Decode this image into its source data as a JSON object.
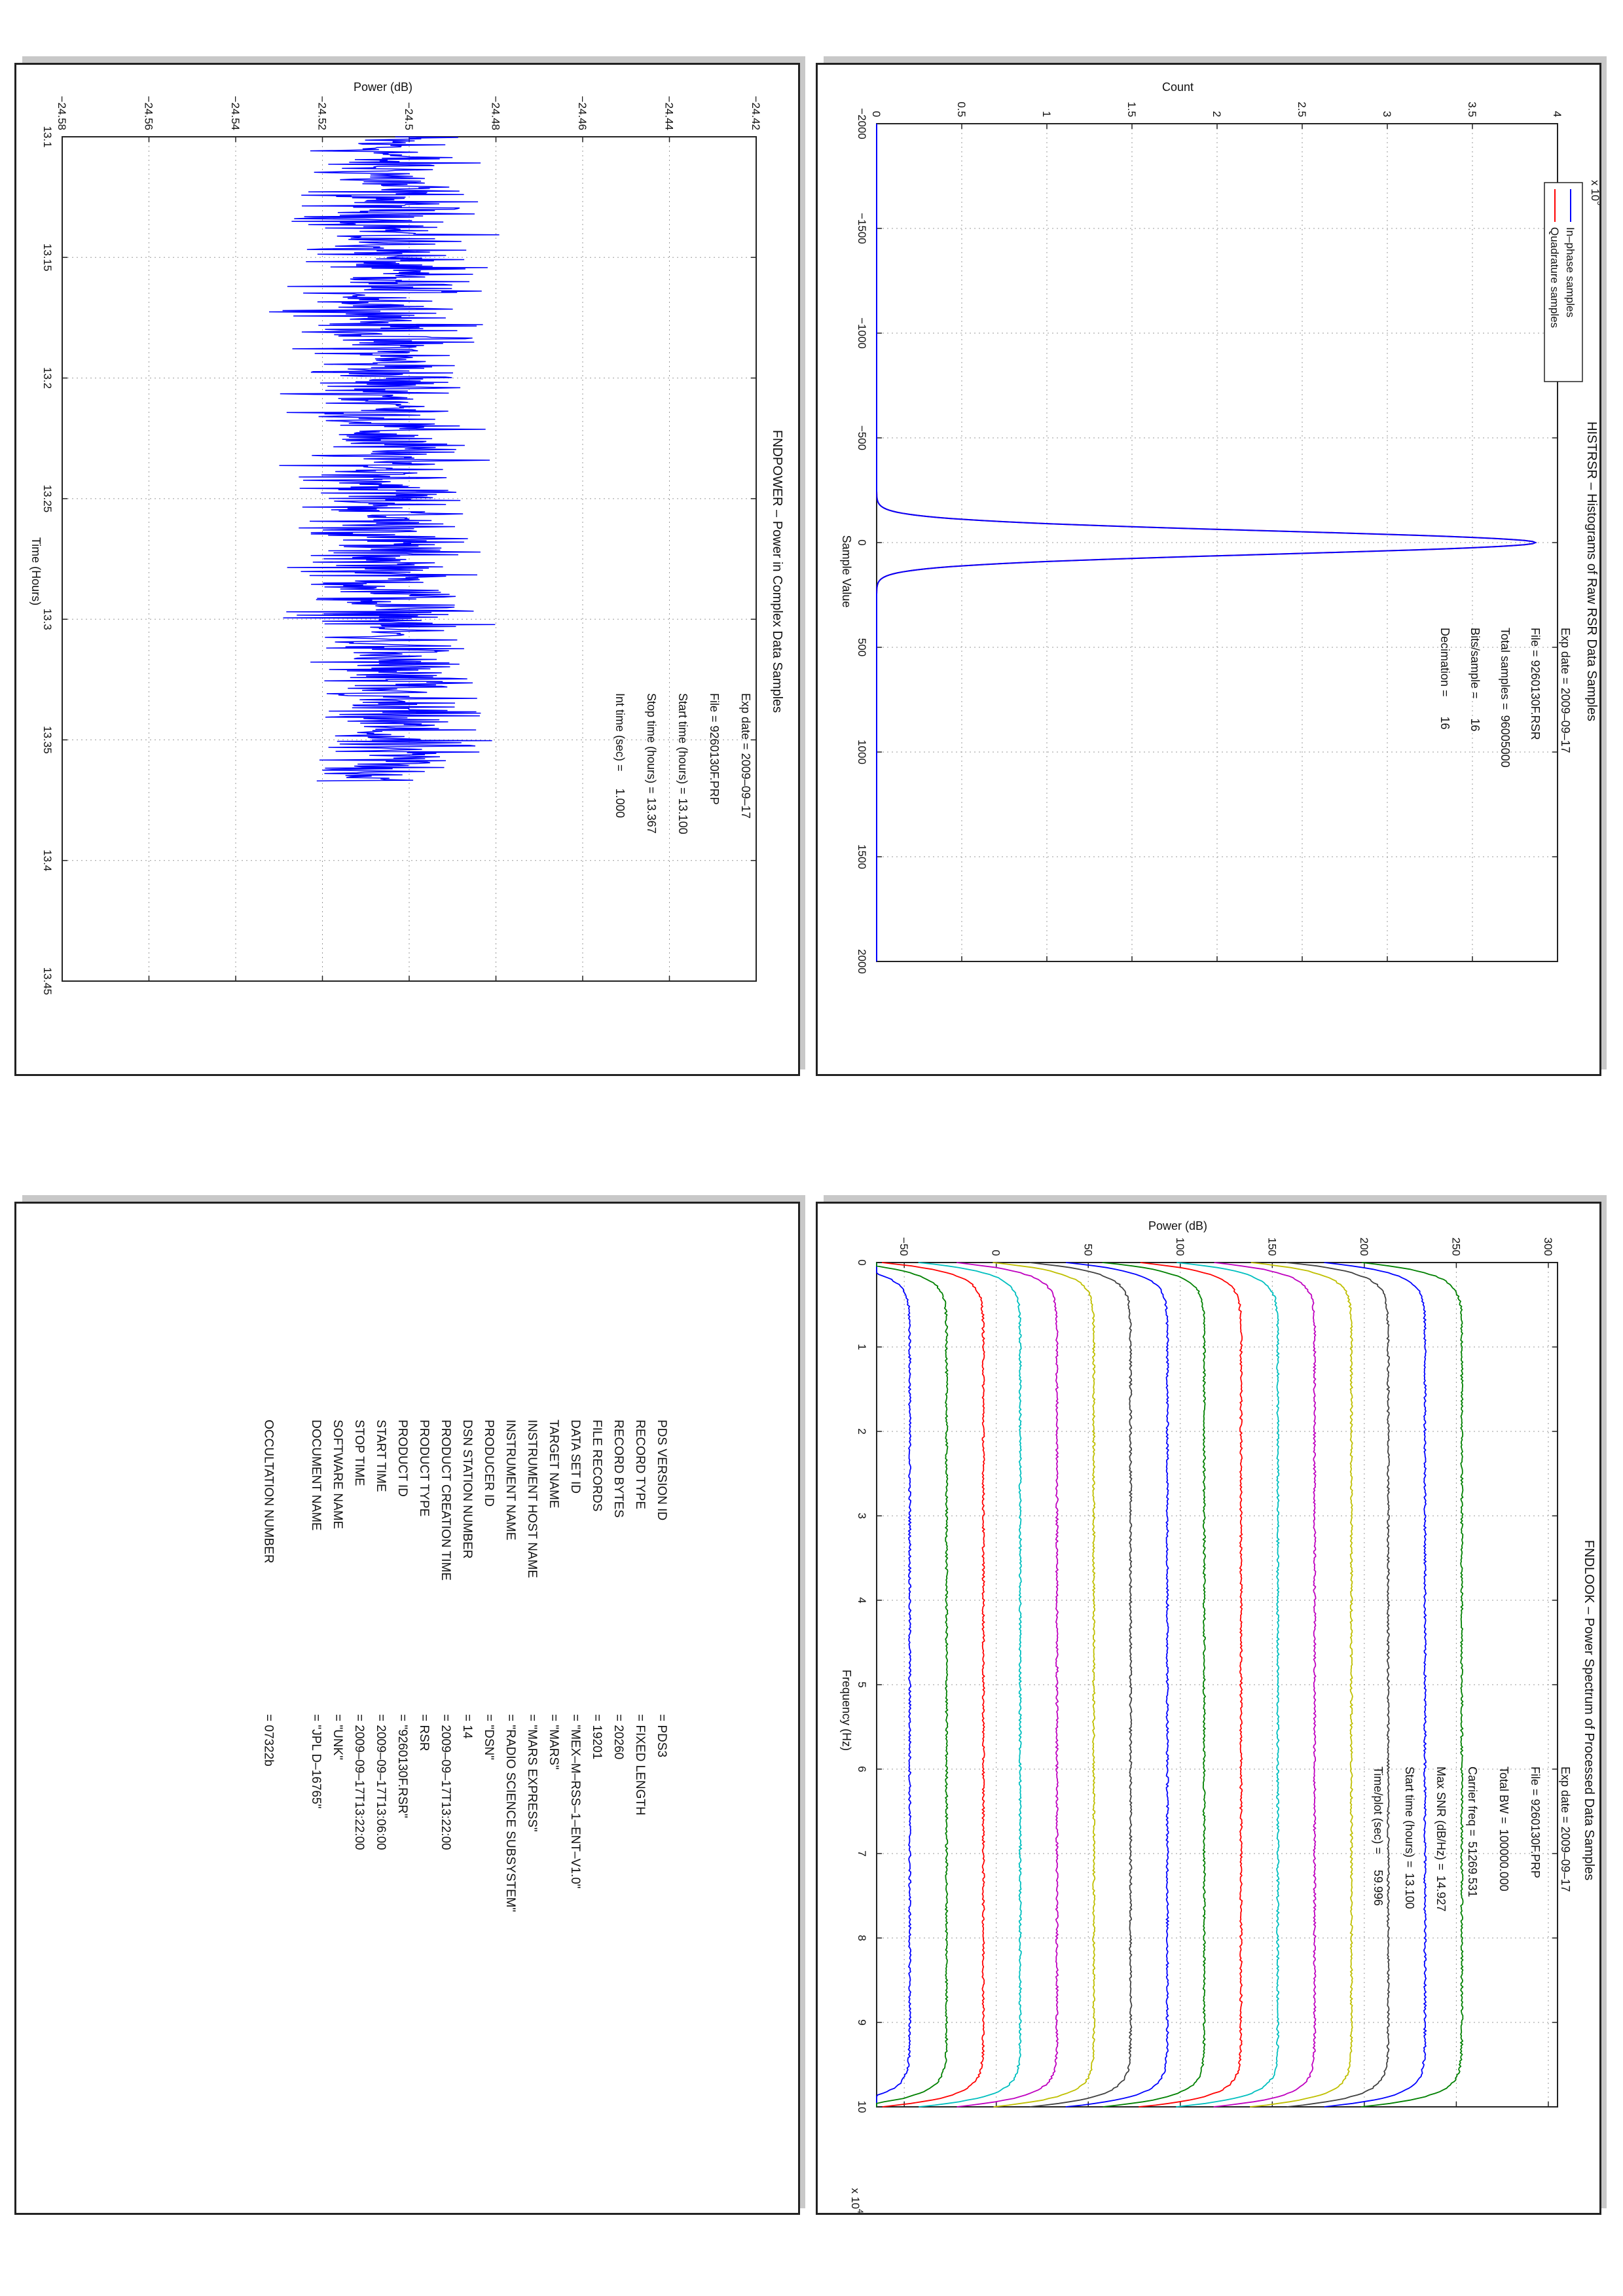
{
  "panels": {
    "histrsr": {
      "title": "HISTRSR – Histograms of Raw RSR Data Samples",
      "info": [
        {
          "label": "Exp date = 2009–09–17",
          "value": ""
        },
        {
          "label": "File = 9260130F.RSR",
          "value": ""
        },
        {
          "label": "Total samples =",
          "value": "96005000"
        },
        {
          "label": "Bits/sample   =",
          "value": "16"
        },
        {
          "label": "Decimation    =",
          "value": "16"
        }
      ],
      "legend": [
        {
          "name": "In–phase samples",
          "color": "#0000ff"
        },
        {
          "name": "Quadrature samples",
          "color": "#ff0000"
        }
      ],
      "chart_data": {
        "type": "line",
        "title": "HISTRSR – Histograms of Raw RSR Data Samples",
        "xlabel": "Sample Value",
        "ylabel": "Count",
        "y_multiplier_label": "x 10",
        "y_multiplier_exp": "5",
        "xlim": [
          -2000,
          2000
        ],
        "ylim": [
          0,
          4
        ],
        "xticks": [
          "−2000",
          "−1500",
          "−1000",
          "−500",
          "0",
          "500",
          "1000",
          "1500",
          "2000"
        ],
        "yticks": [
          "0",
          "0.5",
          "1",
          "1.5",
          "2",
          "2.5",
          "3",
          "3.5",
          "4"
        ],
        "grid": true,
        "legend_position": "top-left",
        "series": [
          {
            "name": "In–phase samples",
            "color": "#0000ff",
            "peak_x": 0,
            "peak_y": 3.87,
            "sigma": 55
          },
          {
            "name": "Quadrature samples",
            "color": "#ff0000",
            "peak_x": 0,
            "peak_y": 3.87,
            "sigma": 55
          }
        ]
      }
    },
    "fndpower": {
      "title": "FNDPOWER – Power in Complex Data Samples",
      "info": [
        {
          "label": "Exp date = 2009–09–17",
          "value": ""
        },
        {
          "label": "File = 9260130F.PRP",
          "value": ""
        },
        {
          "label": "Start time (hours) =",
          "value": "13.100"
        },
        {
          "label": "Stop time (hours) =",
          "value": "13.367"
        },
        {
          "label": "Int time (sec) =",
          "value": "1.000"
        }
      ],
      "chart_data": {
        "type": "line",
        "title": "FNDPOWER – Power in Complex Data Samples",
        "xlabel": "Time (Hours)",
        "ylabel": "Power (dB)",
        "xlim": [
          13.1,
          13.45
        ],
        "ylim": [
          -24.58,
          -24.42
        ],
        "xticks": [
          "13.1",
          "13.15",
          "13.2",
          "13.25",
          "13.3",
          "13.35",
          "13.4",
          "13.45"
        ],
        "yticks": [
          "−24.58",
          "−24.56",
          "−24.54",
          "−24.52",
          "−24.5",
          "−24.48",
          "−24.46",
          "−24.44",
          "−24.42"
        ],
        "grid": true,
        "series": [
          {
            "name": "",
            "color": "#0000ff",
            "x_start": 13.1,
            "x_end": 13.367,
            "mean": -24.505,
            "spread": 0.012,
            "min": -24.548,
            "max": -24.465
          }
        ]
      }
    },
    "fndlook": {
      "title": "FNDLOOK – Power Spectrum of Processed Data Samples",
      "info": [
        {
          "label": "Exp date = 2009–09–17",
          "value": ""
        },
        {
          "label": "File = 9260130F.PRP",
          "value": ""
        },
        {
          "label": "Total BW =",
          "value": "100000.000"
        },
        {
          "label": "Carrier freq =",
          "value": "51269.531"
        },
        {
          "label": "Max SNR (dB/Hz) =",
          "value": "14.927"
        },
        {
          "label": "Start time (hours) =",
          "value": "13.100"
        },
        {
          "label": "Time/plot (sec) =",
          "value": "59.996"
        }
      ],
      "chart_data": {
        "type": "line",
        "title": "FNDLOOK – Power Spectrum of Processed Data Samples",
        "xlabel": "Frequency (Hz)",
        "ylabel": "Power (dB)",
        "x_multiplier_label": "x 10",
        "x_multiplier_exp": "4",
        "xlim": [
          0,
          10
        ],
        "ylim": [
          -65,
          305
        ],
        "xticks": [
          "0",
          "1",
          "2",
          "3",
          "4",
          "5",
          "6",
          "7",
          "8",
          "9",
          "10"
        ],
        "yticks": [
          "−50",
          "0",
          "50",
          "100",
          "150",
          "200",
          "250",
          "300"
        ],
        "grid": true,
        "series": [
          {
            "color": "#0000ff",
            "level": -47
          },
          {
            "color": "#008000",
            "level": -27
          },
          {
            "color": "#ff0000",
            "level": -7
          },
          {
            "color": "#00bfbf",
            "level": 13
          },
          {
            "color": "#bf00bf",
            "level": 33
          },
          {
            "color": "#bfbf00",
            "level": 53
          },
          {
            "color": "#404040",
            "level": 73
          },
          {
            "color": "#0000ff",
            "level": 93
          },
          {
            "color": "#008000",
            "level": 113
          },
          {
            "color": "#ff0000",
            "level": 133
          },
          {
            "color": "#00bfbf",
            "level": 153
          },
          {
            "color": "#bf00bf",
            "level": 173
          },
          {
            "color": "#bfbf00",
            "level": 193
          },
          {
            "color": "#404040",
            "level": 213
          },
          {
            "color": "#0000ff",
            "level": 233
          },
          {
            "color": "#008000",
            "level": 253
          }
        ]
      }
    },
    "label": {
      "rows": [
        {
          "key": "PDS VERSION ID",
          "value": "= PDS3"
        },
        {
          "key": "RECORD TYPE",
          "value": "= FIXED LENGTH"
        },
        {
          "key": "RECORD BYTES",
          "value": "= 20260"
        },
        {
          "key": "FILE RECORDS",
          "value": "= 19201"
        },
        {
          "key": "DATA SET ID",
          "value": "= \"MEX–M–RSS–1–ENT–V1.0\""
        },
        {
          "key": "TARGET NAME",
          "value": "= \"MARS\""
        },
        {
          "key": "INSTRUMENT HOST NAME",
          "value": "= \"MARS EXPRESS\""
        },
        {
          "key": "INSTRUMENT NAME",
          "value": "= \"RADIO SCIENCE SUBSYSTEM\""
        },
        {
          "key": "PRODUCER ID",
          "value": "= \"DSN\""
        },
        {
          "key": "DSN STATION NUMBER",
          "value": "= 14"
        },
        {
          "key": "PRODUCT CREATION TIME",
          "value": "= 2009–09–17T13:22:00"
        },
        {
          "key": "PRODUCT TYPE",
          "value": "= RSR"
        },
        {
          "key": "PRODUCT ID",
          "value": "= \"9260130F.RSR\""
        },
        {
          "key": "START TIME",
          "value": "= 2009–09–17T13:06:00"
        },
        {
          "key": "STOP TIME",
          "value": "= 2009–09–17T13:22:00"
        },
        {
          "key": "SOFTWARE NAME",
          "value": "= \"UNK\""
        },
        {
          "key": "DOCUMENT NAME",
          "value": "= \"JPL D–16765\""
        }
      ],
      "occultation": {
        "key": "OCCULTATION NUMBER",
        "value": "= 07322b"
      }
    }
  }
}
